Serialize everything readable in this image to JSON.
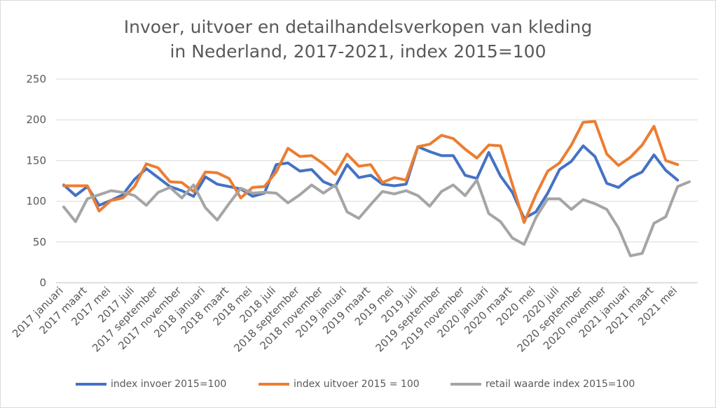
{
  "chart_data": {
    "type": "line",
    "title_line1": "Invoer, uitvoer en detailhandelsverkopen van kleding",
    "title_line2": "in Nederland, 2017-2021, index 2015=100",
    "ylim": [
      0,
      250
    ],
    "yticks": [
      "0",
      "50",
      "100",
      "150",
      "200",
      "250"
    ],
    "grid": true,
    "legend_position": "bottom",
    "x": [
      "2017 januari",
      "2017 februari",
      "2017 maart",
      "2017 april",
      "2017 mei",
      "2017 juni",
      "2017 juli",
      "2017 augustus",
      "2017 september",
      "2017 oktober",
      "2017 november",
      "2017 december",
      "2018 januari",
      "2018 februari",
      "2018 maart",
      "2018 april",
      "2018 mei",
      "2018 juni",
      "2018 juli",
      "2018 augustus",
      "2018 september",
      "2018 oktober",
      "2018 november",
      "2018 december",
      "2019 januari",
      "2019 februari",
      "2019 maart",
      "2019 april",
      "2019 mei",
      "2019 juni",
      "2019 juli",
      "2019 augustus",
      "2019 september",
      "2019 oktober",
      "2019 november",
      "2019 december",
      "2020 januari",
      "2020 februari",
      "2020 maart",
      "2020 april",
      "2020 mei",
      "2020 juni",
      "2020 juli",
      "2020 augustus",
      "2020 september",
      "2020 oktober",
      "2020 november",
      "2020 december",
      "2021 januari",
      "2021 februari",
      "2021 maart",
      "2021 april",
      "2021 mei",
      "2021 juni"
    ],
    "xtick_labels": [
      "2017 januari",
      "2017 maart",
      "2017 mei",
      "2017 juli",
      "2017 september",
      "2017 november",
      "2018 januari",
      "2018 maart",
      "2018 mei",
      "2018 juli",
      "2018 september",
      "2018 november",
      "2019 januari",
      "2019 maart",
      "2019 mei",
      "2019 juli",
      "2019 september",
      "2019 november",
      "2020 januari",
      "2020 maart",
      "2020 mei",
      "2020 juli",
      "2020 september",
      "2020 november",
      "2021 januari",
      "2021 maart",
      "2021 mei"
    ],
    "series": [
      {
        "name": "index invoer 2015=100",
        "color": "#4472C4",
        "values": [
          120,
          107,
          118,
          95,
          101,
          108,
          127,
          140,
          129,
          118,
          113,
          106,
          130,
          121,
          118,
          115,
          106,
          110,
          145,
          147,
          137,
          139,
          124,
          118,
          145,
          129,
          132,
          121,
          119,
          121,
          167,
          161,
          156,
          156,
          132,
          128,
          160,
          131,
          111,
          79,
          87,
          110,
          139,
          149,
          168,
          155,
          122,
          117,
          129,
          136,
          157,
          138,
          126,
          null
        ]
      },
      {
        "name": "index uitvoer 2015 = 100",
        "color": "#ED7D31",
        "values": [
          119,
          119,
          119,
          88,
          101,
          104,
          118,
          146,
          141,
          124,
          123,
          112,
          136,
          135,
          128,
          104,
          117,
          118,
          136,
          165,
          155,
          156,
          146,
          133,
          158,
          143,
          145,
          123,
          129,
          126,
          167,
          170,
          181,
          177,
          164,
          153,
          169,
          168,
          121,
          74,
          108,
          137,
          147,
          169,
          197,
          198,
          158,
          144,
          154,
          169,
          192,
          150,
          145,
          null
        ]
      },
      {
        "name": "retail waarde index 2015=100",
        "color": "#A5A5A5",
        "values": [
          93,
          75,
          103,
          108,
          113,
          111,
          107,
          95,
          111,
          117,
          104,
          120,
          92,
          77,
          97,
          116,
          110,
          111,
          110,
          98,
          108,
          120,
          110,
          120,
          87,
          79,
          96,
          112,
          109,
          113,
          107,
          94,
          112,
          120,
          107,
          126,
          85,
          75,
          55,
          47,
          80,
          103,
          103,
          90,
          102,
          97,
          90,
          67,
          33,
          36,
          73,
          81,
          118,
          124
        ]
      }
    ]
  }
}
